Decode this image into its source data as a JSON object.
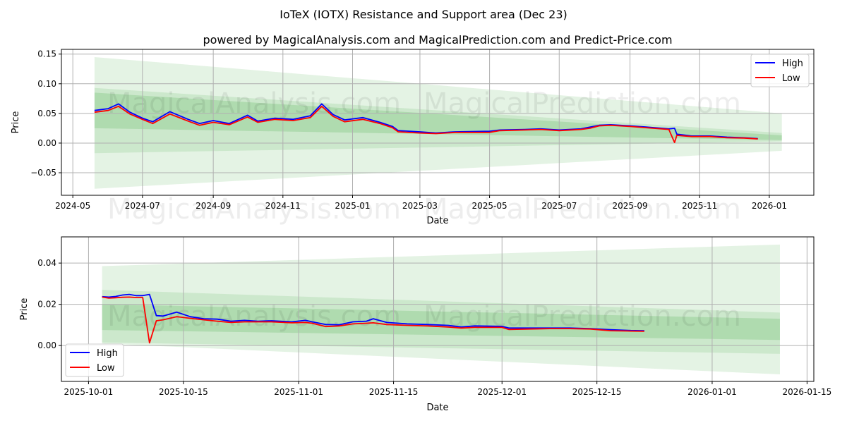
{
  "title": "IoTeX (IOTX) Resistance and Support area (Dec 23)",
  "subtitle": "powered by MagicalAnalysis.com and MagicalPrediction.com and Predict-Price.com",
  "watermarks": [
    "MagicalAnalysis.com",
    "MagicalPrediction.com"
  ],
  "colors": {
    "high": "#0000ff",
    "low": "#ff0000",
    "band": "#2ca02c"
  },
  "chart_data": [
    {
      "type": "line",
      "xlabel": "Date",
      "ylabel": "Price",
      "xlim": [
        "2024-04-21",
        "2026-02-09"
      ],
      "ylim": [
        -0.088,
        0.158
      ],
      "yticks": [
        -0.05,
        0.0,
        0.05,
        0.1,
        0.15
      ],
      "ytick_labels": [
        "−0.05",
        "0.00",
        "0.05",
        "0.10",
        "0.15"
      ],
      "xticks": [
        "2024-05-01",
        "2024-07-01",
        "2024-09-01",
        "2024-11-01",
        "2025-01-01",
        "2025-03-01",
        "2025-05-01",
        "2025-07-01",
        "2025-09-01",
        "2025-11-01",
        "2026-01-01"
      ],
      "xtick_labels": [
        "2024-05",
        "2024-07",
        "2024-09",
        "2024-11",
        "2025-01",
        "2025-03",
        "2025-05",
        "2025-07",
        "2025-09",
        "2025-11",
        "2026-01"
      ],
      "grid": true,
      "legend": {
        "position": "top-right",
        "entries": [
          "High",
          "Low"
        ]
      },
      "bands": [
        {
          "start": "2024-05-20",
          "end": "2026-01-12",
          "upper": [
            0.145,
            0.05
          ],
          "lower": [
            -0.077,
            -0.013
          ],
          "opacity": 0.13
        },
        {
          "start": "2024-05-20",
          "end": "2026-01-12",
          "upper": [
            0.093,
            0.017
          ],
          "lower": [
            -0.017,
            0.003
          ],
          "opacity": 0.13
        },
        {
          "start": "2024-05-20",
          "end": "2026-01-12",
          "upper": [
            0.085,
            0.013
          ],
          "lower": [
            0.025,
            0.005
          ],
          "opacity": 0.18
        }
      ],
      "x": [
        "2024-05-20",
        "2024-06-01",
        "2024-06-10",
        "2024-06-20",
        "2024-07-01",
        "2024-07-10",
        "2024-07-25",
        "2024-08-10",
        "2024-08-20",
        "2024-09-01",
        "2024-09-15",
        "2024-10-01",
        "2024-10-10",
        "2024-10-25",
        "2024-11-10",
        "2024-11-25",
        "2024-12-05",
        "2024-12-15",
        "2024-12-25",
        "2025-01-10",
        "2025-01-25",
        "2025-02-05",
        "2025-02-10",
        "2025-03-01",
        "2025-03-15",
        "2025-04-01",
        "2025-05-01",
        "2025-05-10",
        "2025-06-01",
        "2025-06-15",
        "2025-07-01",
        "2025-07-20",
        "2025-07-28",
        "2025-08-05",
        "2025-08-15",
        "2025-09-01",
        "2025-09-15",
        "2025-10-05",
        "2025-10-10",
        "2025-10-12",
        "2025-10-25",
        "2025-11-10",
        "2025-11-25",
        "2025-12-10",
        "2025-12-22"
      ],
      "series": [
        {
          "name": "High",
          "values": [
            0.055,
            0.058,
            0.066,
            0.052,
            0.042,
            0.036,
            0.053,
            0.04,
            0.033,
            0.038,
            0.033,
            0.047,
            0.037,
            0.042,
            0.04,
            0.046,
            0.066,
            0.048,
            0.039,
            0.043,
            0.035,
            0.028,
            0.021,
            0.019,
            0.017,
            0.019,
            0.02,
            0.022,
            0.023,
            0.024,
            0.022,
            0.024,
            0.027,
            0.03,
            0.031,
            0.029,
            0.027,
            0.024,
            0.025,
            0.015,
            0.012,
            0.012,
            0.01,
            0.009,
            0.0075
          ]
        },
        {
          "name": "Low",
          "values": [
            0.052,
            0.055,
            0.062,
            0.049,
            0.04,
            0.033,
            0.049,
            0.037,
            0.03,
            0.035,
            0.031,
            0.044,
            0.035,
            0.04,
            0.038,
            0.043,
            0.062,
            0.045,
            0.036,
            0.04,
            0.033,
            0.026,
            0.019,
            0.017,
            0.016,
            0.018,
            0.018,
            0.021,
            0.022,
            0.023,
            0.021,
            0.023,
            0.025,
            0.029,
            0.03,
            0.028,
            0.026,
            0.023,
            0.001,
            0.013,
            0.011,
            0.011,
            0.009,
            0.0085,
            0.007
          ]
        }
      ]
    },
    {
      "type": "line",
      "xlabel": "Date",
      "ylabel": "Price",
      "xlim": [
        "2025-09-27",
        "2026-01-16"
      ],
      "ylim": [
        -0.0174,
        0.0527
      ],
      "yticks": [
        0.0,
        0.02,
        0.04
      ],
      "ytick_labels": [
        "0.00",
        "0.02",
        "0.04"
      ],
      "xticks": [
        "2025-10-01",
        "2025-10-15",
        "2025-11-01",
        "2025-11-15",
        "2025-12-01",
        "2025-12-15",
        "2026-01-01",
        "2026-01-15"
      ],
      "xtick_labels": [
        "2025-10-01",
        "2025-10-15",
        "2025-11-01",
        "2025-11-15",
        "2025-12-01",
        "2025-12-15",
        "2026-01-01",
        "2026-01-15"
      ],
      "grid": true,
      "legend": {
        "position": "bottom-left",
        "entries": [
          "High",
          "Low"
        ]
      },
      "bands": [
        {
          "start": "2025-10-03",
          "end": "2026-01-11",
          "upper": [
            0.0385,
            0.049
          ],
          "lower": [
            0.001,
            -0.014
          ],
          "opacity": 0.13
        },
        {
          "start": "2025-10-03",
          "end": "2026-01-11",
          "upper": [
            0.027,
            0.016
          ],
          "lower": [
            0.0015,
            -0.004
          ],
          "opacity": 0.13
        },
        {
          "start": "2025-10-03",
          "end": "2026-01-11",
          "upper": [
            0.02,
            0.013
          ],
          "lower": [
            0.0075,
            0.0027
          ],
          "opacity": 0.18
        }
      ],
      "x": [
        "2025-10-03",
        "2025-10-04",
        "2025-10-05",
        "2025-10-06",
        "2025-10-07",
        "2025-10-08",
        "2025-10-09",
        "2025-10-10",
        "2025-10-11",
        "2025-10-12",
        "2025-10-14",
        "2025-10-16",
        "2025-10-18",
        "2025-10-20",
        "2025-10-22",
        "2025-10-24",
        "2025-10-26",
        "2025-10-28",
        "2025-10-31",
        "2025-11-02",
        "2025-11-03",
        "2025-11-05",
        "2025-11-07",
        "2025-11-09",
        "2025-11-11",
        "2025-11-12",
        "2025-11-14",
        "2025-11-17",
        "2025-11-20",
        "2025-11-23",
        "2025-11-25",
        "2025-11-27",
        "2025-12-01",
        "2025-12-02",
        "2025-12-05",
        "2025-12-08",
        "2025-12-11",
        "2025-12-14",
        "2025-12-17",
        "2025-12-20",
        "2025-12-22"
      ],
      "series": [
        {
          "name": "High",
          "values": [
            0.0237,
            0.0235,
            0.0238,
            0.0245,
            0.0248,
            0.0242,
            0.0242,
            0.0248,
            0.0145,
            0.0143,
            0.0162,
            0.014,
            0.013,
            0.0128,
            0.0118,
            0.0122,
            0.0118,
            0.012,
            0.0115,
            0.0122,
            0.0115,
            0.0102,
            0.0101,
            0.0115,
            0.0118,
            0.013,
            0.0112,
            0.0105,
            0.0102,
            0.0098,
            0.009,
            0.0095,
            0.0093,
            0.0085,
            0.0085,
            0.0085,
            0.0085,
            0.0082,
            0.0077,
            0.0073,
            0.0072
          ]
        },
        {
          "name": "Low",
          "values": [
            0.0235,
            0.023,
            0.0232,
            0.0234,
            0.0235,
            0.0233,
            0.0233,
            0.0013,
            0.012,
            0.0125,
            0.014,
            0.0132,
            0.0125,
            0.0118,
            0.0112,
            0.0115,
            0.0115,
            0.0115,
            0.011,
            0.0112,
            0.0108,
            0.0092,
            0.0095,
            0.0105,
            0.0108,
            0.011,
            0.0102,
            0.0098,
            0.0095,
            0.009,
            0.0085,
            0.0088,
            0.0088,
            0.0078,
            0.008,
            0.0082,
            0.0082,
            0.008,
            0.0072,
            0.007,
            0.0069
          ]
        }
      ]
    }
  ]
}
